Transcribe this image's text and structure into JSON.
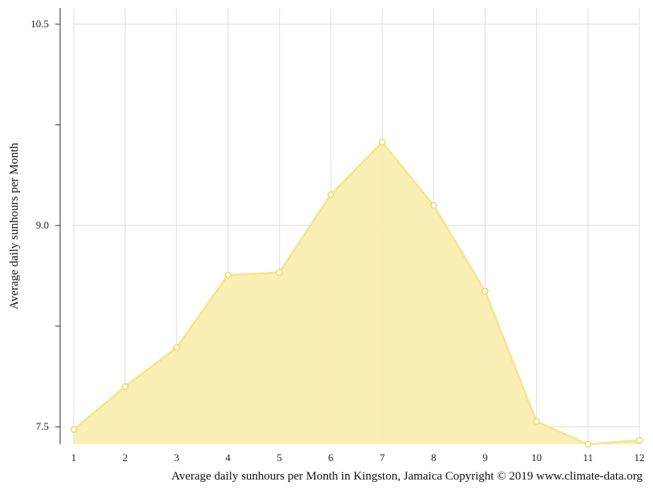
{
  "chart_data": {
    "type": "area",
    "x": [
      1,
      2,
      3,
      4,
      5,
      6,
      7,
      8,
      9,
      10,
      11,
      12
    ],
    "x_tick_labels": [
      "1",
      "2",
      "3",
      "4",
      "5",
      "6",
      "7",
      "8",
      "9",
      "10",
      "11",
      "12"
    ],
    "values": [
      7.48,
      7.8,
      8.09,
      8.63,
      8.65,
      9.23,
      9.62,
      9.15,
      8.51,
      7.54,
      7.37,
      7.4
    ],
    "ylim": [
      7.37,
      10.62
    ],
    "y_ticks": [
      7.5,
      8.25,
      9.0,
      9.75,
      10.5
    ],
    "y_tick_labels": [
      "7.5",
      "",
      "9.0",
      "",
      "10.5"
    ],
    "ylabel": "Average daily sunhours per Month",
    "xlabel": "Average daily sunhours per Month in Kingston, Jamaica Copyright © 2019 www.climate-data.org",
    "grid": true,
    "colors": {
      "fill": "#faeeb0",
      "line": "#f8e48a",
      "marker_fill": "#ffffff",
      "marker_stroke": "#f0d868",
      "grid": "#dddddd",
      "axis": "#333333"
    }
  }
}
